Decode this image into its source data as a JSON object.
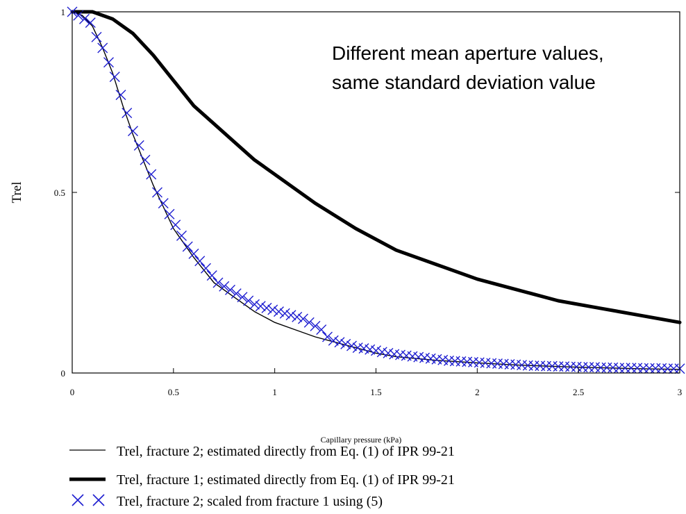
{
  "chart_data": {
    "type": "line",
    "title": "",
    "xlabel": "Capillary pressure  (kPa)",
    "ylabel": "Trel",
    "xlim": [
      0,
      3
    ],
    "ylim": [
      0,
      1
    ],
    "x_ticks": [
      "0",
      "0.5",
      "1",
      "1.5",
      "2",
      "2.5",
      "3"
    ],
    "y_ticks": [
      "0",
      "0.5",
      "1"
    ],
    "grid": false,
    "legend_position": "below",
    "annotation": [
      "Different mean aperture values,",
      "same standard deviation value"
    ],
    "series": [
      {
        "name": "Trel, fracture 2; estimated directly from Eq. (1) of IPR 99-21",
        "style": "thin-line",
        "color": "#000000",
        "x": [
          0,
          0.05,
          0.1,
          0.15,
          0.2,
          0.25,
          0.3,
          0.35,
          0.4,
          0.5,
          0.6,
          0.7,
          0.8,
          0.9,
          1.0,
          1.1,
          1.2,
          1.3,
          1.4,
          1.5,
          1.6,
          1.8,
          2.0,
          2.2,
          2.5,
          2.8,
          3.0
        ],
        "y": [
          1.0,
          0.99,
          0.96,
          0.9,
          0.83,
          0.74,
          0.66,
          0.59,
          0.52,
          0.4,
          0.32,
          0.25,
          0.21,
          0.17,
          0.14,
          0.12,
          0.1,
          0.085,
          0.07,
          0.055,
          0.045,
          0.035,
          0.028,
          0.022,
          0.016,
          0.012,
          0.01
        ]
      },
      {
        "name": "Trel, fracture 1; estimated directly from Eq. (1) of IPR 99-21",
        "style": "thick-line",
        "color": "#000000",
        "x": [
          0,
          0.1,
          0.2,
          0.3,
          0.4,
          0.5,
          0.6,
          0.7,
          0.8,
          0.9,
          1.0,
          1.2,
          1.4,
          1.6,
          1.8,
          2.0,
          2.2,
          2.4,
          2.6,
          2.8,
          3.0
        ],
        "y": [
          1.0,
          1.0,
          0.98,
          0.94,
          0.88,
          0.81,
          0.74,
          0.69,
          0.64,
          0.59,
          0.55,
          0.47,
          0.4,
          0.34,
          0.3,
          0.26,
          0.23,
          0.2,
          0.18,
          0.16,
          0.14
        ]
      },
      {
        "name": "Trel, fracture 2; scaled from fracture 1 using (5)",
        "style": "x-markers",
        "color": "#1f1fd0",
        "x": [
          0,
          0.03,
          0.06,
          0.09,
          0.12,
          0.15,
          0.18,
          0.21,
          0.24,
          0.27,
          0.3,
          0.33,
          0.36,
          0.39,
          0.42,
          0.45,
          0.48,
          0.51,
          0.54,
          0.57,
          0.6,
          0.63,
          0.66,
          0.69,
          0.72,
          0.75,
          0.78,
          0.81,
          0.84,
          0.87,
          0.9,
          0.93,
          0.96,
          0.99,
          1.02,
          1.05,
          1.08,
          1.11,
          1.14,
          1.17,
          1.2,
          1.23,
          1.26,
          1.29,
          1.32,
          1.35,
          1.38,
          1.41,
          1.44,
          1.47,
          1.5,
          1.53,
          1.56,
          1.59,
          1.62,
          1.65,
          1.68,
          1.71,
          1.74,
          1.77,
          1.8,
          1.83,
          1.86,
          1.89,
          1.92,
          1.95,
          1.98,
          2.01,
          2.04,
          2.07,
          2.1,
          2.13,
          2.16,
          2.19,
          2.22,
          2.25,
          2.28,
          2.31,
          2.34,
          2.37,
          2.4,
          2.43,
          2.46,
          2.49,
          2.52,
          2.55,
          2.58,
          2.61,
          2.64,
          2.67,
          2.7,
          2.73,
          2.76,
          2.79,
          2.82,
          2.85,
          2.88,
          2.91,
          2.94,
          2.97,
          3.0
        ],
        "y": [
          1.0,
          0.99,
          0.98,
          0.97,
          0.93,
          0.9,
          0.86,
          0.82,
          0.77,
          0.72,
          0.67,
          0.63,
          0.59,
          0.55,
          0.5,
          0.47,
          0.44,
          0.41,
          0.38,
          0.35,
          0.33,
          0.31,
          0.29,
          0.27,
          0.25,
          0.24,
          0.23,
          0.22,
          0.21,
          0.2,
          0.19,
          0.185,
          0.18,
          0.175,
          0.17,
          0.165,
          0.16,
          0.155,
          0.15,
          0.14,
          0.13,
          0.12,
          0.1,
          0.09,
          0.085,
          0.08,
          0.075,
          0.07,
          0.068,
          0.065,
          0.062,
          0.058,
          0.055,
          0.052,
          0.05,
          0.048,
          0.046,
          0.044,
          0.042,
          0.04,
          0.038,
          0.036,
          0.034,
          0.033,
          0.032,
          0.031,
          0.03,
          0.029,
          0.028,
          0.027,
          0.026,
          0.025,
          0.024,
          0.023,
          0.022,
          0.021,
          0.02,
          0.02,
          0.019,
          0.019,
          0.018,
          0.018,
          0.017,
          0.017,
          0.016,
          0.016,
          0.016,
          0.015,
          0.015,
          0.015,
          0.014,
          0.014,
          0.014,
          0.014,
          0.013,
          0.013,
          0.013,
          0.013,
          0.012,
          0.012,
          0.012
        ]
      }
    ]
  }
}
